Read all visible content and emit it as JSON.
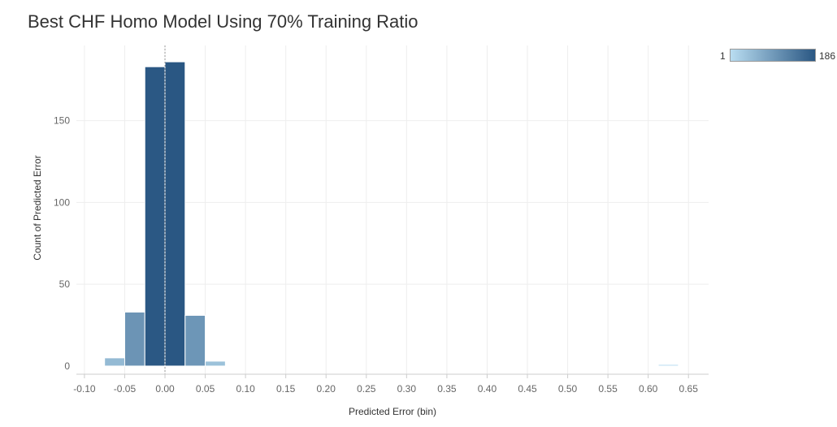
{
  "chart_data": {
    "type": "bar",
    "title": "Best CHF Homo Model Using 70% Training Ratio",
    "xlabel": "Predicted Error (bin)",
    "ylabel": "Count of Predicted Error",
    "x_tick_labels": [
      "-0.10",
      "-0.05",
      "0.00",
      "0.05",
      "0.10",
      "0.15",
      "0.20",
      "0.25",
      "0.30",
      "0.35",
      "0.40",
      "0.45",
      "0.50",
      "0.55",
      "0.60",
      "0.65"
    ],
    "x_tick_values": [
      -0.1,
      -0.05,
      0.0,
      0.05,
      0.1,
      0.15,
      0.2,
      0.25,
      0.3,
      0.35,
      0.4,
      0.45,
      0.5,
      0.55,
      0.6,
      0.65
    ],
    "y_tick_labels": [
      "0",
      "50",
      "100",
      "150"
    ],
    "y_tick_values": [
      0,
      50,
      100,
      150
    ],
    "xlim": [
      -0.11,
      0.675
    ],
    "ylim": [
      -5,
      196
    ],
    "bin_width": 0.025,
    "bins": [
      {
        "start": -0.075,
        "count": 5
      },
      {
        "start": -0.05,
        "count": 33
      },
      {
        "start": -0.025,
        "count": 183
      },
      {
        "start": 0.0,
        "count": 186
      },
      {
        "start": 0.025,
        "count": 31
      },
      {
        "start": 0.05,
        "count": 3
      },
      {
        "start": 0.6125,
        "count": 1
      }
    ],
    "reference_line_x": 0.0,
    "color_legend": {
      "min": 1,
      "max": 186,
      "min_label": "1",
      "max_label": "186",
      "color_low": "#b9ddf1",
      "color_high": "#2a5783"
    },
    "grid": true,
    "legend_position": "top-right"
  }
}
